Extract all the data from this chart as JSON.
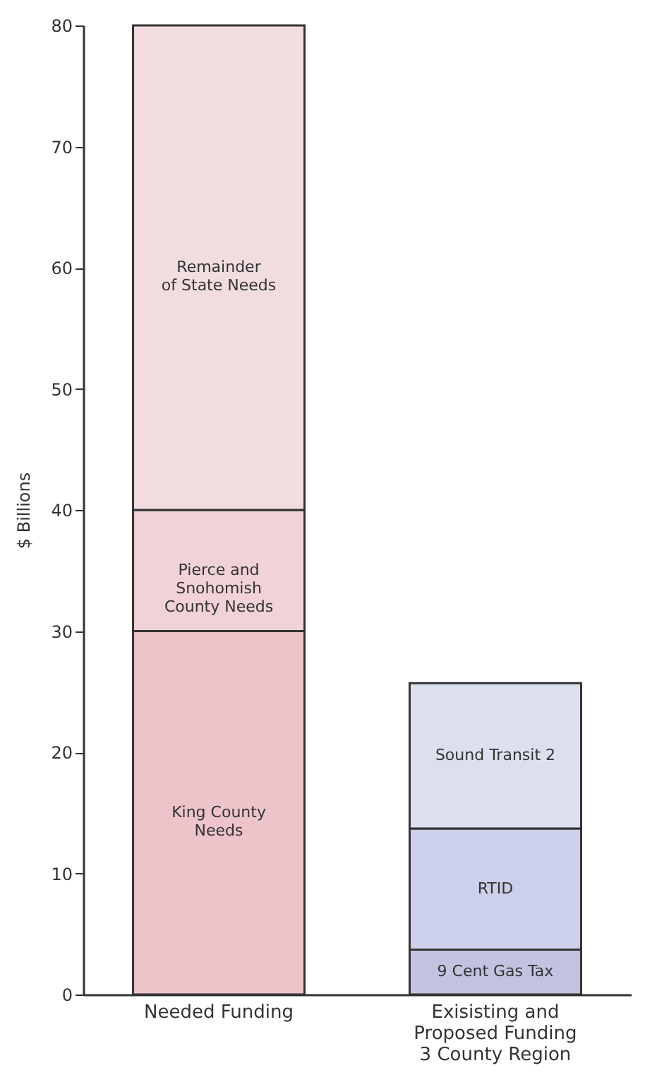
{
  "chart_data": {
    "type": "bar",
    "stacked": true,
    "ylabel": "$ Billions",
    "categories": [
      "Needed Funding",
      "Exisisting and\nProposed Funding\n3 County Region"
    ],
    "series": [
      {
        "name": "King County\nNeeds",
        "color": "#ecc4ca",
        "values": [
          30,
          null
        ]
      },
      {
        "name": "Pierce and\nSnohomish\nCounty Needs",
        "color": "#f0d2d7",
        "values": [
          10,
          null
        ]
      },
      {
        "name": "Remainder\nof State Needs",
        "color": "#f1dde0",
        "values": [
          40,
          null
        ]
      },
      {
        "name": "9 Cent Gas Tax",
        "color": "#c3c3e1",
        "values": [
          null,
          3.7
        ]
      },
      {
        "name": "RTID",
        "color": "#cdd0ea",
        "values": [
          null,
          10
        ]
      },
      {
        "name": "Sound Transit 2",
        "color": "#dcdfee",
        "values": [
          null,
          12
        ]
      }
    ],
    "ylim": [
      0,
      80
    ],
    "yticks": [
      0,
      10,
      20,
      30,
      40,
      50,
      60,
      70,
      80
    ],
    "grid": false,
    "legend": false
  }
}
